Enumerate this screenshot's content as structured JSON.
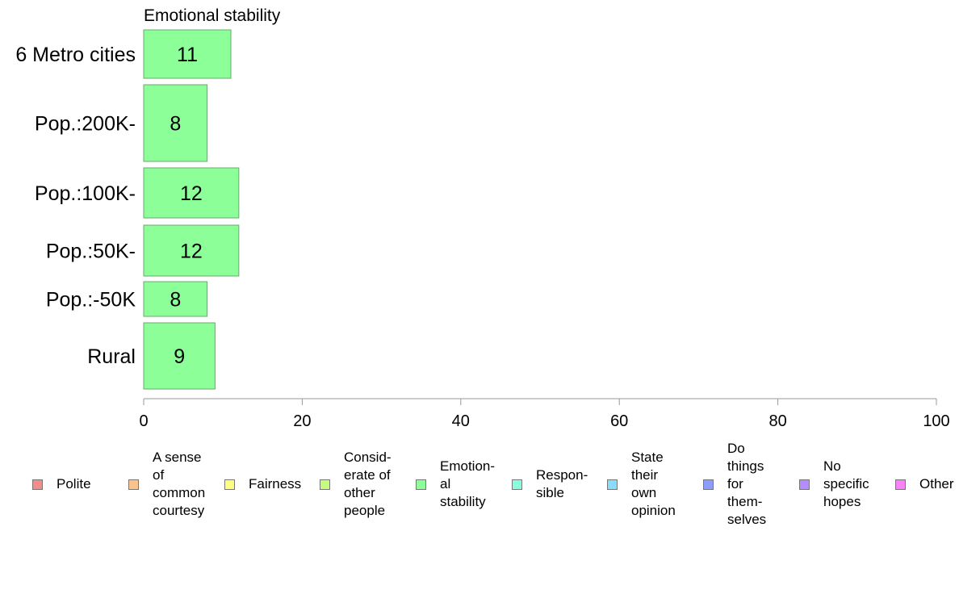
{
  "chart_data": {
    "type": "bar",
    "orientation": "horizontal",
    "title": "Emotional stability",
    "categories": [
      "6 Metro cities",
      "Pop.:200K-",
      "Pop.:100K-",
      "Pop.:50K-",
      "Pop.:-50K",
      "Rural"
    ],
    "series": [
      {
        "name": "Emotional stability",
        "values": [
          11,
          8,
          12,
          12,
          8,
          9
        ],
        "color": "#8cff98"
      }
    ],
    "value_labels": [
      "11",
      "8",
      "12",
      "12",
      "8",
      "9"
    ],
    "xlim": [
      0,
      100
    ],
    "xticks": [
      "0",
      "20",
      "40",
      "60",
      "80",
      "100"
    ],
    "grid": false,
    "legend_position": "bottom"
  },
  "legend": [
    {
      "label": "Polite",
      "color": "#f48c8c"
    },
    {
      "label": "A sense\nof\ncommon\ncourtesy",
      "color": "#f8c48c"
    },
    {
      "label": "Fairness",
      "color": "#fdfd80"
    },
    {
      "label": "Consid-\nerate of\nother\npeople",
      "color": "#c4fd80"
    },
    {
      "label": "Emotion-\nal\nstability",
      "color": "#8cff98"
    },
    {
      "label": "Respon-\nsible",
      "color": "#88ffdc"
    },
    {
      "label": "State\ntheir\nown\nopinion",
      "color": "#88dcff"
    },
    {
      "label": "Do\nthings\nfor\nthem-\nselves",
      "color": "#8c9cff"
    },
    {
      "label": "No\nspecific\nhopes",
      "color": "#b48cff"
    },
    {
      "label": "Other",
      "color": "#f880f8"
    }
  ]
}
